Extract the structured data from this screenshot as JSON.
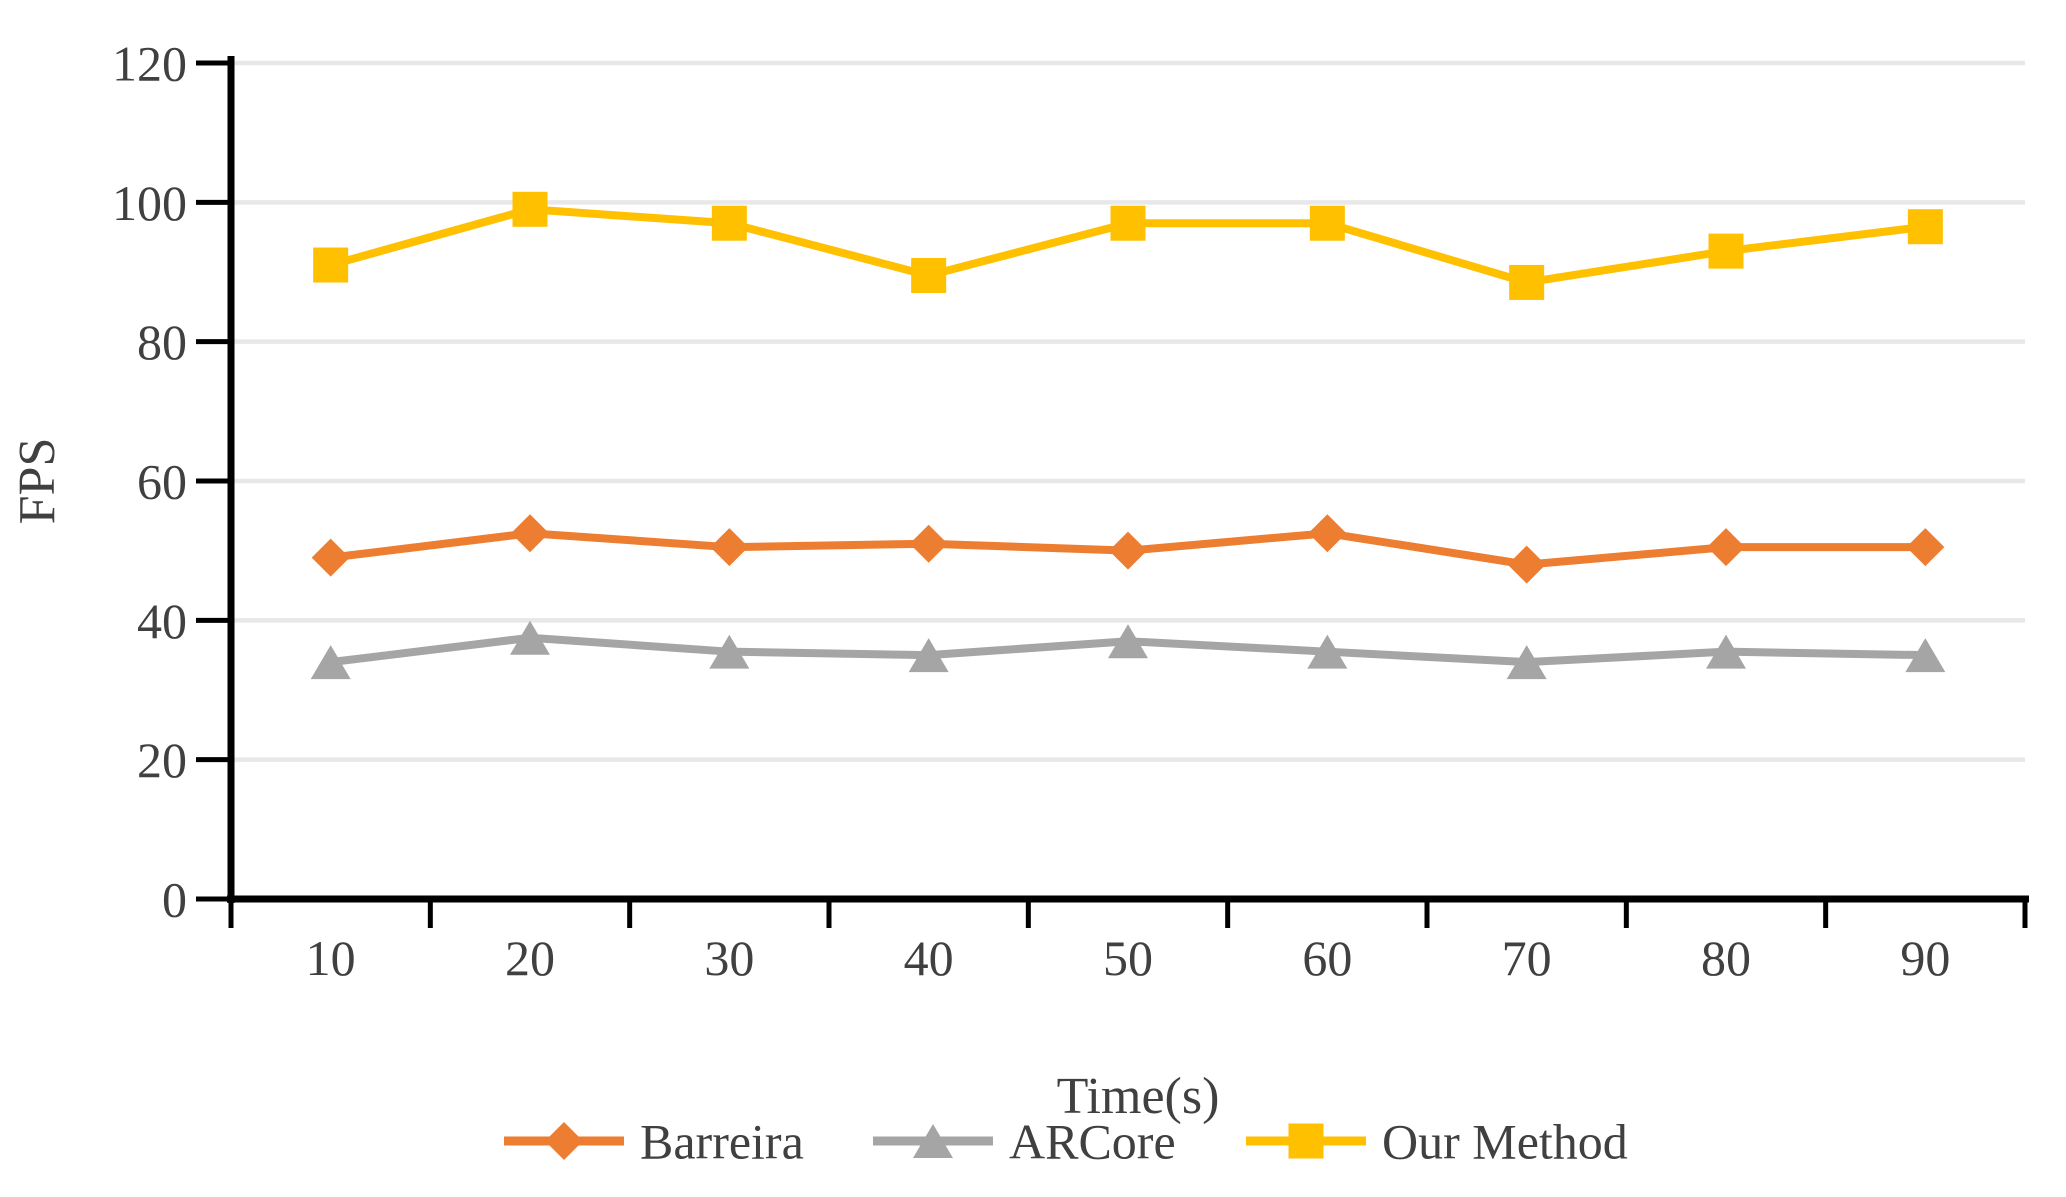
{
  "chart_data": {
    "type": "line",
    "title": "",
    "xlabel": "Time(s)",
    "ylabel": "FPS",
    "categories": [
      "10",
      "20",
      "30",
      "40",
      "50",
      "60",
      "70",
      "80",
      "90"
    ],
    "ylim": [
      0,
      120
    ],
    "ytick_step": 20,
    "ytick_labels": [
      "0",
      "20",
      "40",
      "60",
      "80",
      "100",
      "120"
    ],
    "grid": "horizontal-only",
    "legend_position": "bottom",
    "series": [
      {
        "name": "Barreira",
        "marker": "diamond",
        "color": "#ED7D31",
        "values": [
          49,
          52.5,
          50.5,
          51,
          50,
          52.5,
          48,
          50.5,
          50.5
        ]
      },
      {
        "name": "ARCore",
        "marker": "triangle",
        "color": "#A5A5A5",
        "values": [
          34,
          37.5,
          35.5,
          35,
          37,
          35.5,
          34,
          35.5,
          35
        ]
      },
      {
        "name": "Our Method",
        "marker": "square",
        "color": "#FFC000",
        "values": [
          91,
          99,
          97,
          89.5,
          97,
          97,
          88.5,
          93,
          96.5
        ]
      }
    ],
    "colors": {
      "axis": "#000000",
      "gridline": "#E8E8E8",
      "text": "#404040",
      "background": "#FFFFFF"
    }
  }
}
